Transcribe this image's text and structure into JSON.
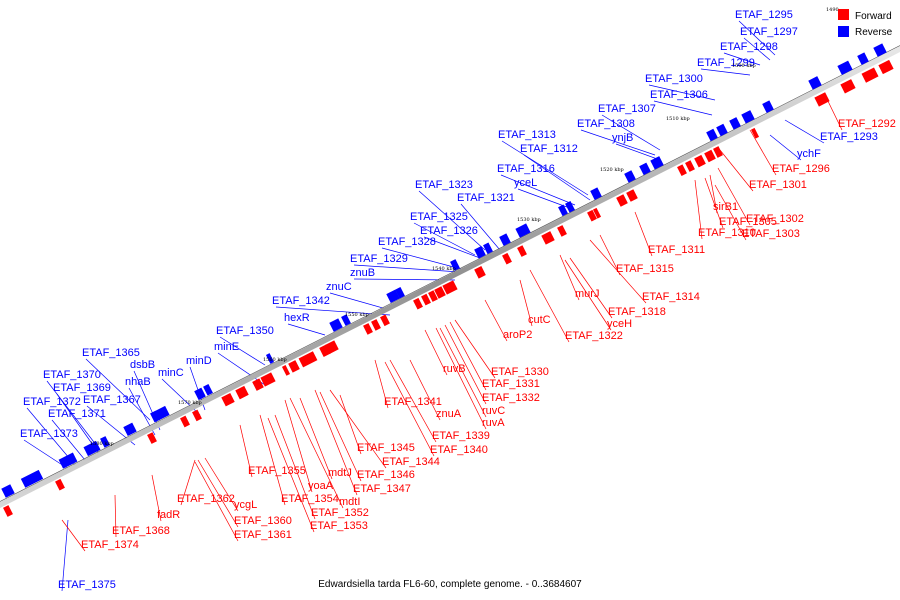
{
  "caption": "Edwardsiella tarda FL6-60, complete genome. - 0..3684607",
  "corner_tick": "1490",
  "legend": {
    "forward_label": "Forward",
    "reverse_label": "Reverse",
    "forward_color": "#ff0000",
    "reverse_color": "#0000ff"
  },
  "ticks": [
    "1500 kbp",
    "1510 kbp",
    "1520 kbp",
    "1530 kbp",
    "1540 kbp",
    "1550 kbp",
    "1560 kbp",
    "1570 kbp",
    "1580 kbp"
  ],
  "reverse_labels": [
    "ETAF_1295",
    "ETAF_1297",
    "ETAF_1298",
    "ETAF_1299",
    "ETAF_1300",
    "ETAF_1306",
    "ETAF_1307",
    "ETAF_1308",
    "ynjB",
    "ETAF_1313",
    "ETAF_1312",
    "ETAF_1316",
    "yceL",
    "ETAF_1323",
    "ETAF_1321",
    "ETAF_1325",
    "ETAF_1326",
    "ETAF_1328",
    "ETAF_1329",
    "znuB",
    "znuC",
    "ETAF_1342",
    "hexR",
    "ETAF_1350",
    "minE",
    "minD",
    "ETAF_1365",
    "dsbB",
    "nhaB",
    "minC",
    "ETAF_1370",
    "ETAF_1369",
    "ETAF_1372",
    "ETAF_1367",
    "ETAF_1371",
    "ETAF_1373",
    "ETAF_1293",
    "ychF",
    "ETAF_1375"
  ],
  "forward_labels": [
    "ETAF_1292",
    "ETAF_1296",
    "ETAF_1301",
    "sirB1",
    "ETAF_1302",
    "ETAF_1305",
    "ETAF_1310",
    "ETAF_1303",
    "ETAF_1311",
    "ETAF_1315",
    "ETAF_1314",
    "murJ",
    "ETAF_1318",
    "yceH",
    "ETAF_1322",
    "cutC",
    "aroP2",
    "ETAF_1330",
    "ETAF_1331",
    "ETAF_1332",
    "ruvB",
    "ruvC",
    "ruvA",
    "ETAF_1341",
    "znuA",
    "ETAF_1339",
    "ETAF_1340",
    "ETAF_1345",
    "ETAF_1344",
    "ETAF_1346",
    "ETAF_1347",
    "mdtJ",
    "mdtI",
    "yoaA",
    "ETAF_1355",
    "ETAF_1354",
    "ETAF_1352",
    "ETAF_1353",
    "ETAF_1362",
    "ycgL",
    "ETAF_1360",
    "ETAF_1361",
    "fadR",
    "ETAF_1368",
    "ETAF_1374"
  ]
}
